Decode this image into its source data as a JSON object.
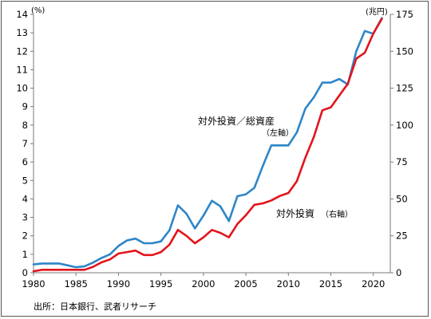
{
  "chart_data": {
    "type": "line",
    "title": "",
    "xlabel": "",
    "left_axis": {
      "unit": "(%)",
      "ylim": [
        0,
        14
      ],
      "ticks": [
        0,
        1,
        2,
        3,
        4,
        5,
        6,
        7,
        8,
        9,
        10,
        11,
        12,
        13,
        14
      ]
    },
    "right_axis": {
      "unit": "(兆円)",
      "ylim": [
        0,
        175
      ],
      "ticks": [
        0,
        25,
        50,
        75,
        100,
        125,
        150,
        175
      ]
    },
    "x_ticks": [
      1980,
      1985,
      1990,
      1995,
      2000,
      2005,
      2010,
      2015,
      2020
    ],
    "xlim": [
      1980,
      2022
    ],
    "grid": false,
    "series": [
      {
        "name": "対外投資／総資産",
        "name_sub": "（左軸）",
        "axis": "left",
        "color": "#2e86c8",
        "x": [
          1980,
          1981,
          1982,
          1983,
          1984,
          1985,
          1986,
          1987,
          1988,
          1989,
          1990,
          1991,
          1992,
          1993,
          1994,
          1995,
          1996,
          1997,
          1998,
          1999,
          2000,
          2001,
          2002,
          2003,
          2004,
          2005,
          2006,
          2007,
          2008,
          2009,
          2010,
          2011,
          2012,
          2013,
          2014,
          2015,
          2016,
          2017,
          2018,
          2019,
          2020,
          2021
        ],
        "values": [
          0.45,
          0.5,
          0.5,
          0.5,
          0.4,
          0.3,
          0.35,
          0.55,
          0.8,
          1.0,
          1.45,
          1.75,
          1.85,
          1.6,
          1.6,
          1.7,
          2.3,
          3.65,
          3.2,
          2.4,
          3.1,
          3.9,
          3.6,
          2.8,
          4.15,
          4.25,
          4.6,
          5.8,
          6.9,
          6.9,
          6.9,
          7.6,
          8.9,
          9.5,
          10.3,
          10.3,
          10.5,
          10.2,
          12.0,
          13.1,
          12.95,
          13.8
        ]
      },
      {
        "name": "対外投資",
        "name_sub": "（右軸）",
        "axis": "right",
        "color": "#e3141c",
        "x": [
          1980,
          1981,
          1982,
          1983,
          1984,
          1985,
          1986,
          1987,
          1988,
          1989,
          1990,
          1991,
          1992,
          1993,
          1994,
          1995,
          1996,
          1997,
          1998,
          1999,
          2000,
          2001,
          2002,
          2003,
          2004,
          2005,
          2006,
          2007,
          2008,
          2009,
          2010,
          2011,
          2012,
          2013,
          2014,
          2015,
          2016,
          2017,
          2018,
          2019,
          2020,
          2021
        ],
        "values": [
          1,
          2,
          2,
          2,
          2,
          2,
          2,
          4,
          7,
          9,
          13,
          14,
          15,
          12,
          12,
          14,
          19,
          29,
          25,
          20,
          24,
          29,
          27,
          24,
          33,
          39,
          46,
          47,
          49,
          52,
          54,
          62,
          78,
          92,
          110,
          112,
          120,
          128,
          145,
          149,
          162,
          172
        ]
      }
    ],
    "source": "出所：日本銀行、武者リサーチ"
  }
}
